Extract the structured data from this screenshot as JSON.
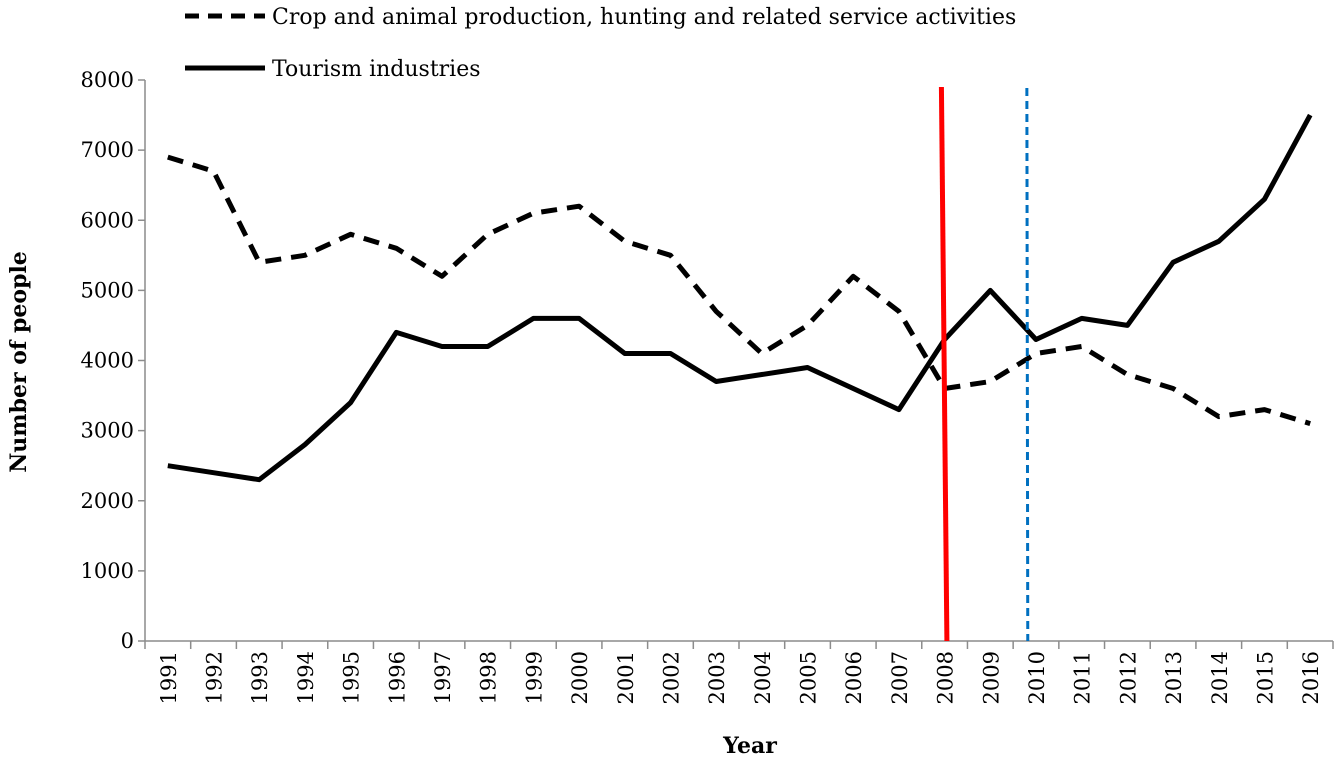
{
  "chart_data": {
    "type": "line",
    "title": "",
    "xlabel": "Year",
    "ylabel": "Number of people",
    "ylim": [
      0,
      8000
    ],
    "yticks": [
      0,
      1000,
      2000,
      3000,
      4000,
      5000,
      6000,
      7000,
      8000
    ],
    "categories": [
      "1991",
      "1992",
      "1993",
      "1994",
      "1995",
      "1996",
      "1997",
      "1998",
      "1999",
      "2000",
      "2001",
      "2002",
      "2003",
      "2004",
      "2005",
      "2006",
      "2007",
      "2008",
      "2009",
      "2010",
      "2011",
      "2012",
      "2013",
      "2014",
      "2015",
      "2016"
    ],
    "grid": false,
    "legend_position": "top-left",
    "series": [
      {
        "name": "Crop and animal production, hunting and related service activities",
        "style": "dashed",
        "color": "#000000",
        "values": [
          6900,
          6700,
          5400,
          5500,
          5800,
          5600,
          5200,
          5800,
          6100,
          6200,
          5700,
          5500,
          4700,
          4100,
          4500,
          5200,
          4700,
          3600,
          3700,
          4100,
          4200,
          3800,
          3600,
          3200,
          3300,
          3100
        ]
      },
      {
        "name": "Tourism industries",
        "style": "solid",
        "color": "#000000",
        "values": [
          2500,
          2400,
          2300,
          2800,
          3400,
          4400,
          4200,
          4200,
          4600,
          4600,
          4100,
          4100,
          3700,
          3800,
          3900,
          3600,
          3300,
          4300,
          5000,
          4300,
          4600,
          4500,
          5400,
          5700,
          6300,
          7500
        ]
      }
    ],
    "markers": [
      {
        "name": "red-marker-line",
        "color": "#ff0000",
        "style": "solid",
        "top_x": 2007.93,
        "bottom_x": 2008.05
      },
      {
        "name": "blue-marker-line",
        "color": "#0070c0",
        "style": "dashed",
        "top_x": 2009.8,
        "bottom_x": 2009.82
      }
    ]
  }
}
